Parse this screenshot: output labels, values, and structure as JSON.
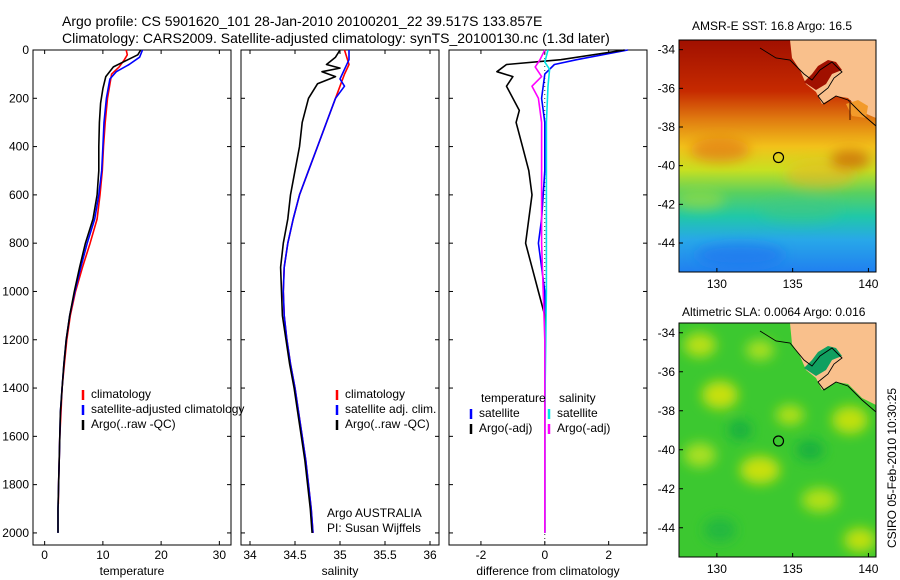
{
  "header": {
    "line1": "Argo profile: CS 5901620_101 28-Jan-2010 20100201_22 39.517S 133.857E",
    "line2": "Climatology: CARS2009. Satellite-adjusted climatology: synTS_20100130.nc (1.3d later)"
  },
  "side_label": "CSIRO 05-Feb-2010 10:30:25",
  "colors": {
    "red": "#ff0000",
    "blue": "#0000ff",
    "black": "#000000",
    "cyan": "#00e5e5",
    "magenta": "#ff00ff",
    "land": "#f9c08c"
  },
  "chart_data": [
    {
      "type": "line",
      "xlabel": "temperature",
      "ylabel": "",
      "xlim": [
        -2,
        32
      ],
      "ylim": [
        2050,
        0
      ],
      "xticks": [
        0,
        10,
        20,
        30
      ],
      "yticks": [
        0,
        200,
        400,
        600,
        800,
        1000,
        1200,
        1400,
        1600,
        1800,
        2000
      ],
      "legend": {
        "position": "lower-right",
        "entries": [
          "climatology",
          "satellite-adjusted climatology",
          "Argo(..raw -QC)"
        ]
      },
      "series": [
        {
          "name": "climatology",
          "color": "red",
          "points": [
            [
              14.0,
              0
            ],
            [
              14.2,
              20
            ],
            [
              13.7,
              40
            ],
            [
              12.8,
              70
            ],
            [
              11.5,
              100
            ],
            [
              10.8,
              200
            ],
            [
              10.4,
              300
            ],
            [
              10.1,
              400
            ],
            [
              9.9,
              500
            ],
            [
              9.5,
              600
            ],
            [
              9.0,
              700
            ],
            [
              7.8,
              800
            ],
            [
              6.5,
              900
            ],
            [
              5.3,
              1000
            ],
            [
              4.4,
              1100
            ],
            [
              3.8,
              1200
            ],
            [
              3.4,
              1300
            ],
            [
              3.0,
              1400
            ],
            [
              2.8,
              1500
            ],
            [
              2.6,
              1600
            ],
            [
              2.5,
              1700
            ],
            [
              2.4,
              1800
            ],
            [
              2.35,
              1880
            ]
          ]
        },
        {
          "name": "satellite-adjusted climatology",
          "color": "blue",
          "points": [
            [
              16.8,
              0
            ],
            [
              16.3,
              30
            ],
            [
              14.5,
              60
            ],
            [
              12.3,
              90
            ],
            [
              11.2,
              120
            ],
            [
              10.6,
              200
            ],
            [
              10.2,
              300
            ],
            [
              10.0,
              400
            ],
            [
              9.8,
              500
            ],
            [
              9.3,
              600
            ],
            [
              8.6,
              700
            ],
            [
              7.3,
              800
            ],
            [
              6.2,
              900
            ],
            [
              5.2,
              1000
            ],
            [
              4.3,
              1100
            ],
            [
              3.7,
              1200
            ],
            [
              3.3,
              1300
            ],
            [
              3.0,
              1400
            ],
            [
              2.7,
              1500
            ],
            [
              2.6,
              1600
            ],
            [
              2.5,
              1700
            ],
            [
              2.4,
              1800
            ],
            [
              2.3,
              1900
            ],
            [
              2.3,
              2000
            ]
          ]
        },
        {
          "name": "Argo(..raw -QC)",
          "color": "black",
          "points": [
            [
              16.5,
              0
            ],
            [
              16.0,
              20
            ],
            [
              14.3,
              40
            ],
            [
              11.8,
              70
            ],
            [
              10.5,
              110
            ],
            [
              10.0,
              160
            ],
            [
              9.6,
              220
            ],
            [
              9.4,
              300
            ],
            [
              9.3,
              400
            ],
            [
              9.3,
              500
            ],
            [
              9.0,
              600
            ],
            [
              8.3,
              700
            ],
            [
              7.0,
              800
            ],
            [
              6.0,
              900
            ],
            [
              5.1,
              1000
            ],
            [
              4.3,
              1100
            ],
            [
              3.7,
              1200
            ],
            [
              3.3,
              1300
            ],
            [
              3.0,
              1400
            ],
            [
              2.7,
              1500
            ],
            [
              2.6,
              1600
            ],
            [
              2.5,
              1700
            ],
            [
              2.4,
              1800
            ],
            [
              2.3,
              1900
            ],
            [
              2.3,
              2000
            ]
          ]
        }
      ]
    },
    {
      "type": "line",
      "xlabel": "salinity",
      "ylabel": "",
      "xlim": [
        33.9,
        36.1
      ],
      "ylim": [
        2050,
        0
      ],
      "xticks": [
        34,
        34.5,
        35,
        35.5,
        36
      ],
      "xtick_labels": [
        "34",
        "34.5",
        "35",
        "35.5",
        "36"
      ],
      "legend": {
        "position": "lower-right",
        "entries": [
          "climatology",
          "satellite adj. clim.",
          "Argo(..raw -QC)"
        ]
      },
      "annotation": [
        "Argo AUSTRALIA",
        "PI: Susan Wijffels"
      ],
      "series": [
        {
          "name": "climatology",
          "color": "red",
          "points": [
            [
              35.05,
              0
            ],
            [
              35.1,
              60
            ],
            [
              35.05,
              100
            ],
            [
              35.0,
              150
            ],
            [
              34.95,
              200
            ],
            [
              34.85,
              300
            ],
            [
              34.75,
              400
            ],
            [
              34.65,
              500
            ],
            [
              34.55,
              600
            ],
            [
              34.48,
              700
            ],
            [
              34.42,
              800
            ],
            [
              34.38,
              900
            ],
            [
              34.37,
              1000
            ],
            [
              34.38,
              1100
            ],
            [
              34.41,
              1200
            ],
            [
              34.45,
              1300
            ],
            [
              34.5,
              1400
            ],
            [
              34.54,
              1500
            ],
            [
              34.58,
              1600
            ],
            [
              34.62,
              1700
            ],
            [
              34.65,
              1800
            ],
            [
              34.68,
              1900
            ],
            [
              34.7,
              2000
            ]
          ]
        },
        {
          "name": "satellite adj. clim.",
          "color": "blue",
          "points": [
            [
              35.1,
              0
            ],
            [
              35.1,
              40
            ],
            [
              35.05,
              80
            ],
            [
              35.0,
              120
            ],
            [
              35.05,
              150
            ],
            [
              34.95,
              200
            ],
            [
              34.85,
              300
            ],
            [
              34.75,
              400
            ],
            [
              34.65,
              500
            ],
            [
              34.55,
              600
            ],
            [
              34.48,
              700
            ],
            [
              34.42,
              800
            ],
            [
              34.38,
              900
            ],
            [
              34.37,
              1000
            ],
            [
              34.38,
              1100
            ],
            [
              34.41,
              1200
            ],
            [
              34.45,
              1300
            ],
            [
              34.5,
              1400
            ],
            [
              34.54,
              1500
            ],
            [
              34.58,
              1600
            ],
            [
              34.62,
              1700
            ],
            [
              34.65,
              1800
            ],
            [
              34.68,
              1900
            ],
            [
              34.7,
              2000
            ]
          ]
        },
        {
          "name": "Argo(..raw -QC)",
          "color": "black",
          "points": [
            [
              35.0,
              0
            ],
            [
              34.95,
              30
            ],
            [
              34.85,
              60
            ],
            [
              35.0,
              75
            ],
            [
              34.8,
              90
            ],
            [
              34.95,
              110
            ],
            [
              34.75,
              140
            ],
            [
              34.65,
              200
            ],
            [
              34.58,
              300
            ],
            [
              34.55,
              400
            ],
            [
              34.5,
              500
            ],
            [
              34.45,
              600
            ],
            [
              34.42,
              700
            ],
            [
              34.37,
              800
            ],
            [
              34.34,
              900
            ],
            [
              34.35,
              1000
            ],
            [
              34.36,
              1100
            ],
            [
              34.4,
              1200
            ],
            [
              34.44,
              1300
            ],
            [
              34.49,
              1400
            ],
            [
              34.53,
              1500
            ],
            [
              34.57,
              1600
            ],
            [
              34.61,
              1700
            ],
            [
              34.64,
              1800
            ],
            [
              34.67,
              1900
            ],
            [
              34.69,
              2000
            ]
          ]
        }
      ]
    },
    {
      "type": "line",
      "xlabel": "difference from climatology",
      "ylabel": "",
      "xlim": [
        -3,
        3.2
      ],
      "ylim": [
        2050,
        0
      ],
      "xticks": [
        -2,
        0,
        2
      ],
      "legend": {
        "position": "lower-right",
        "columns": [
          {
            "heading": "temperature",
            "entries": [
              "satellite",
              "Argo(-adj)"
            ]
          },
          {
            "heading": "salinity",
            "entries": [
              "satellite",
              "Argo(-adj)"
            ]
          }
        ]
      },
      "series": [
        {
          "name": "temperature satellite",
          "color": "blue",
          "points": [
            [
              2.6,
              0
            ],
            [
              1.0,
              40
            ],
            [
              0.3,
              60
            ],
            [
              0.0,
              100
            ],
            [
              -0.1,
              200
            ],
            [
              0.0,
              300
            ],
            [
              0.0,
              500
            ],
            [
              -0.1,
              700
            ],
            [
              -0.2,
              800
            ],
            [
              -0.1,
              900
            ],
            [
              0.0,
              1000
            ],
            [
              0.0,
              1500
            ],
            [
              0.0,
              2000
            ]
          ]
        },
        {
          "name": "temperature Argo(-adj)",
          "color": "black",
          "points": [
            [
              2.5,
              0
            ],
            [
              0.5,
              40
            ],
            [
              -1.2,
              60
            ],
            [
              -1.5,
              90
            ],
            [
              -1.0,
              110
            ],
            [
              -1.2,
              150
            ],
            [
              -0.8,
              250
            ],
            [
              -0.9,
              300
            ],
            [
              -0.7,
              400
            ],
            [
              -0.5,
              500
            ],
            [
              -0.4,
              600
            ],
            [
              -0.5,
              700
            ],
            [
              -0.6,
              800
            ],
            [
              -0.4,
              900
            ],
            [
              -0.2,
              1000
            ],
            [
              0.0,
              1100
            ],
            [
              0.0,
              1500
            ],
            [
              0.0,
              2000
            ]
          ]
        },
        {
          "name": "salinity satellite",
          "color": "cyan",
          "points": [
            [
              0.1,
              0
            ],
            [
              0.0,
              50
            ],
            [
              0.15,
              80
            ],
            [
              0.1,
              150
            ],
            [
              0.05,
              300
            ],
            [
              0.05,
              600
            ],
            [
              0.05,
              1000
            ],
            [
              0.0,
              1500
            ],
            [
              0.0,
              2000
            ]
          ]
        },
        {
          "name": "salinity Argo(-adj)",
          "color": "magenta",
          "points": [
            [
              0.0,
              0
            ],
            [
              -0.15,
              40
            ],
            [
              -0.3,
              70
            ],
            [
              -0.1,
              110
            ],
            [
              -0.4,
              150
            ],
            [
              -0.2,
              200
            ],
            [
              -0.1,
              300
            ],
            [
              -0.1,
              500
            ],
            [
              -0.1,
              800
            ],
            [
              -0.05,
              1000
            ],
            [
              0.0,
              1200
            ],
            [
              0.0,
              1600
            ],
            [
              0.0,
              2000
            ]
          ]
        }
      ]
    },
    {
      "type": "heatmap",
      "title": "AMSR-E SST: 16.8 Argo: 16.5",
      "xlim": [
        127.5,
        140.5
      ],
      "ylim": [
        -45.5,
        -33.5
      ],
      "xticks": [
        130,
        135,
        140
      ],
      "yticks": [
        -34,
        -36,
        -38,
        -40,
        -42,
        -44
      ],
      "marker": {
        "lon": 133.857,
        "lat": -39.517
      }
    },
    {
      "type": "heatmap",
      "title": "Altimetric SLA: 0.0064 Argo: 0.016",
      "xlim": [
        127.5,
        140.5
      ],
      "ylim": [
        -45.5,
        -33.5
      ],
      "xticks": [
        130,
        135,
        140
      ],
      "yticks": [
        -34,
        -36,
        -38,
        -40,
        -42,
        -44
      ],
      "marker": {
        "lon": 133.857,
        "lat": -39.517
      }
    }
  ]
}
